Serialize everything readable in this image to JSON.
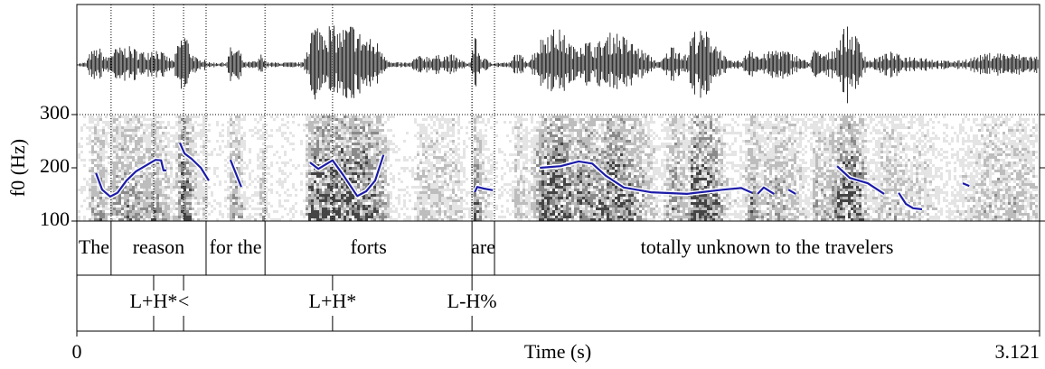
{
  "chart_data": {
    "type": "line",
    "xlabel": "Time (s)",
    "ylabel": "f0 (Hz)",
    "xlim": [
      0,
      3.121
    ],
    "xticks": [
      0,
      3.121
    ],
    "ylim": [
      100,
      300
    ],
    "yticks": [
      100,
      200,
      300
    ],
    "series": [
      {
        "color": "#1c1ca8",
        "x": [
          0.062,
          0.082,
          0.108,
          0.132,
          0.161,
          0.191,
          0.226,
          0.255,
          0.273,
          0.281,
          0.29,
          null,
          0.334,
          0.349,
          0.372,
          0.402,
          0.428,
          null,
          0.498,
          0.513,
          0.533,
          null,
          0.756,
          0.783,
          0.829,
          0.865,
          0.909,
          0.938,
          0.967,
          0.994,
          null,
          1.29,
          1.298,
          1.319,
          1.348,
          null,
          1.501,
          1.568,
          1.627,
          1.671,
          1.715,
          1.773,
          1.861,
          1.978,
          2.096,
          2.154,
          2.189,
          null,
          2.207,
          2.227,
          2.26,
          null,
          2.307,
          2.33,
          null,
          2.465,
          2.506,
          2.564,
          2.617,
          null,
          2.664,
          2.688,
          2.711,
          2.74,
          null,
          2.872,
          2.893
        ],
        "values": [
          190,
          159,
          146,
          153,
          176,
          193,
          205,
          215,
          214,
          195,
          195,
          null,
          247,
          227,
          217,
          200,
          176,
          null,
          215,
          193,
          164,
          null,
          210,
          198,
          214,
          185,
          147,
          156,
          176,
          224,
          null,
          154,
          164,
          161,
          158,
          null,
          200,
          203,
          212,
          208,
          185,
          163,
          154,
          151,
          159,
          162,
          153,
          null,
          151,
          163,
          151,
          null,
          159,
          151,
          null,
          203,
          181,
          171,
          151,
          null,
          153,
          132,
          124,
          122,
          null,
          171,
          166
        ]
      }
    ],
    "word_tier": {
      "boundaries": [
        0.111,
        0.419,
        0.61,
        1.281,
        1.354
      ],
      "labels": [
        "The",
        "reason",
        "for the",
        "forts",
        "are",
        "totally unknown to the travelers"
      ]
    },
    "tone_tier": {
      "times": [
        0.249,
        0.346,
        0.829,
        1.281
      ],
      "labels": [
        "L+H*",
        "<",
        "L+H*",
        "L-H%"
      ]
    }
  }
}
